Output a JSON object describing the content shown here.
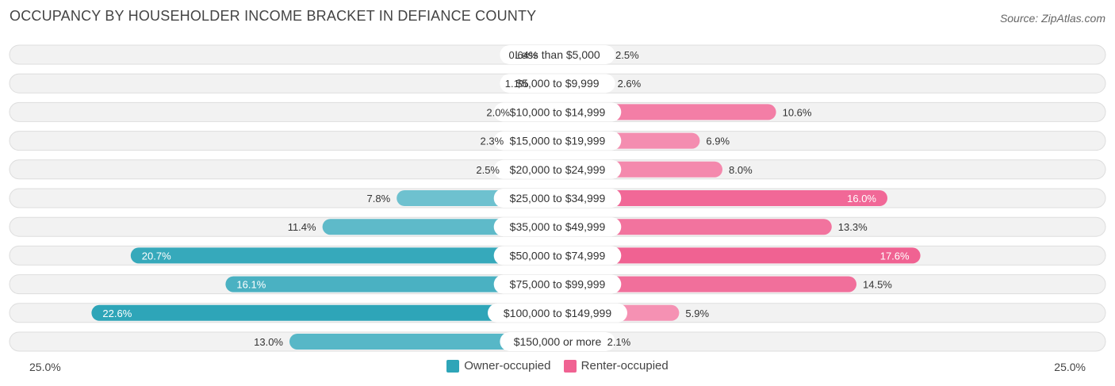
{
  "title": "OCCUPANCY BY HOUSEHOLDER INCOME BRACKET IN DEFIANCE COUNTY",
  "source": "Source: ZipAtlas.com",
  "axis": {
    "left_label": "25.0%",
    "right_label": "25.0%"
  },
  "legend": {
    "owner": "Owner-occupied",
    "renter": "Renter-occupied"
  },
  "colors": {
    "owner": "#56bcc9",
    "owner_strong": "#2ea5b8",
    "renter": "#f48fb1",
    "renter_strong": "#f06292",
    "owner_light": "#8fd0db",
    "renter_light": "#f7a9c4"
  },
  "chart_data": {
    "type": "bar",
    "orientation": "horizontal-diverging",
    "title": "OCCUPANCY BY HOUSEHOLDER INCOME BRACKET IN DEFIANCE COUNTY",
    "xlim": [
      -25,
      25
    ],
    "categories": [
      "Less than $5,000",
      "$5,000 to $9,999",
      "$10,000 to $14,999",
      "$15,000 to $19,999",
      "$20,000 to $24,999",
      "$25,000 to $34,999",
      "$35,000 to $49,999",
      "$50,000 to $74,999",
      "$75,000 to $99,999",
      "$100,000 to $149,999",
      "$150,000 or more"
    ],
    "series": [
      {
        "name": "Owner-occupied",
        "values": [
          0.64,
          1.1,
          2.0,
          2.3,
          2.5,
          7.8,
          11.4,
          20.7,
          16.1,
          22.6,
          13.0
        ],
        "labels": [
          "0.64%",
          "1.1%",
          "2.0%",
          "2.3%",
          "2.5%",
          "7.8%",
          "11.4%",
          "20.7%",
          "16.1%",
          "22.6%",
          "13.0%"
        ]
      },
      {
        "name": "Renter-occupied",
        "values": [
          2.5,
          2.6,
          10.6,
          6.9,
          8.0,
          16.0,
          13.3,
          17.6,
          14.5,
          5.9,
          2.1
        ],
        "labels": [
          "2.5%",
          "2.6%",
          "10.6%",
          "6.9%",
          "8.0%",
          "16.0%",
          "13.3%",
          "17.6%",
          "14.5%",
          "5.9%",
          "2.1%"
        ]
      }
    ],
    "legend_position": "bottom-center"
  }
}
